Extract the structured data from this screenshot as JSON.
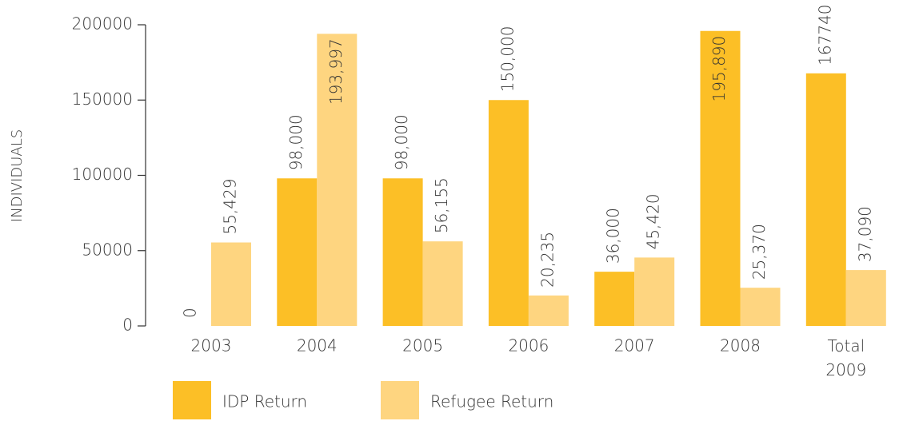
{
  "chart_data": {
    "type": "bar",
    "y_label": "INDIVIDUALS",
    "categories": [
      "2003",
      "2004",
      "2005",
      "2006",
      "2007",
      "2008",
      "Total 2009"
    ],
    "series": [
      {
        "name": "IDP Return",
        "color": "#fcbf26",
        "values": [
          0,
          98000,
          98000,
          150000,
          36000,
          195890,
          167740
        ],
        "value_labels": [
          "0",
          "98,000",
          "98,000",
          "150,000",
          "36,000",
          "195,890",
          "167740"
        ]
      },
      {
        "name": "Refugee Return",
        "color": "#fed580",
        "values": [
          55429,
          193997,
          56155,
          20235,
          45420,
          25370,
          37090
        ],
        "value_labels": [
          "55,429",
          "193,997",
          "56,155",
          "20,235",
          "45,420",
          "25,370",
          "37,090"
        ]
      }
    ],
    "ylim": [
      0,
      200000
    ],
    "yticks": [
      0,
      50000,
      100000,
      150000,
      200000
    ]
  }
}
